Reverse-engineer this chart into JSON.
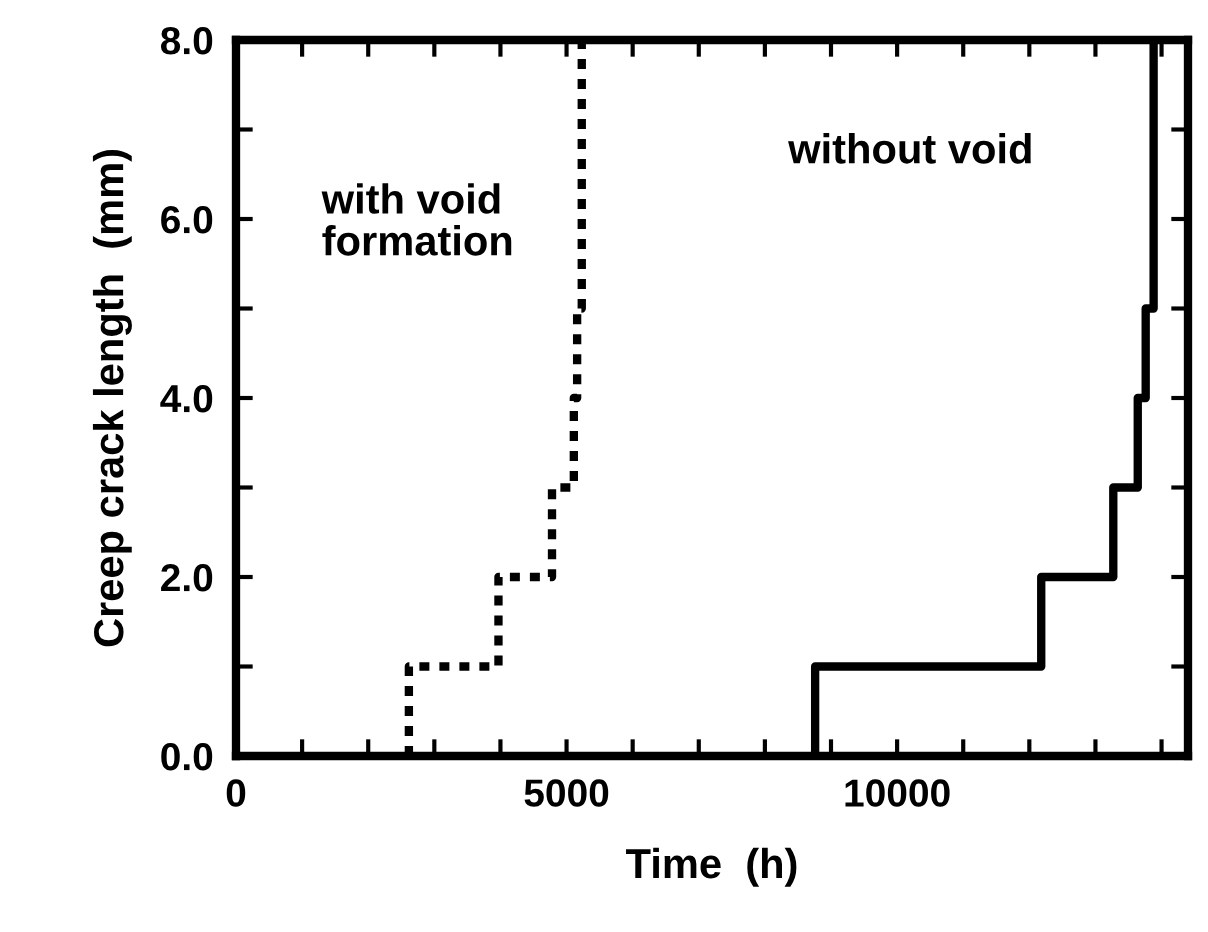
{
  "chart_data": {
    "type": "step",
    "xlabel": "Time  (h)",
    "ylabel": "Creep crack length  (mm)",
    "xlim": [
      0,
      14400
    ],
    "ylim": [
      0,
      8
    ],
    "xticks": [
      0,
      {
        "value": 1000,
        "label": null
      },
      {
        "value": 2000,
        "label": null
      },
      {
        "value": 3000,
        "label": null
      },
      {
        "value": 4000,
        "label": null
      },
      5000,
      {
        "value": 6000,
        "label": null
      },
      {
        "value": 7000,
        "label": null
      },
      {
        "value": 8000,
        "label": null
      },
      {
        "value": 9000,
        "label": null
      },
      10000,
      {
        "value": 11000,
        "label": null
      },
      {
        "value": 12000,
        "label": null
      },
      {
        "value": 13000,
        "label": null
      },
      {
        "value": 14000,
        "label": null
      }
    ],
    "yticks": [
      {
        "value": 0,
        "label": "0.0"
      },
      {
        "value": 1,
        "label": null
      },
      {
        "value": 2,
        "label": "2.0"
      },
      {
        "value": 3,
        "label": null
      },
      {
        "value": 4,
        "label": "4.0"
      },
      {
        "value": 5,
        "label": null
      },
      {
        "value": 6,
        "label": "6.0"
      },
      {
        "value": 7,
        "label": null
      },
      {
        "value": 8,
        "label": "8.0"
      }
    ],
    "grid": false,
    "legend": false,
    "series": [
      {
        "color": "#000000",
        "line_style": "dotted",
        "x": [
          2615,
          2615,
          3970,
          4780,
          5110,
          5160,
          5230
        ],
        "values": [
          0,
          1,
          2,
          3,
          4,
          5,
          8
        ]
      },
      {
        "color": "#000000",
        "line_style": "solid",
        "x": [
          8760,
          8760,
          12180,
          13270,
          13640,
          13760,
          13880
        ],
        "values": [
          0,
          1,
          2,
          3,
          4,
          5,
          8
        ]
      }
    ],
    "annotations": [
      "with void\nformation",
      "without void"
    ]
  }
}
